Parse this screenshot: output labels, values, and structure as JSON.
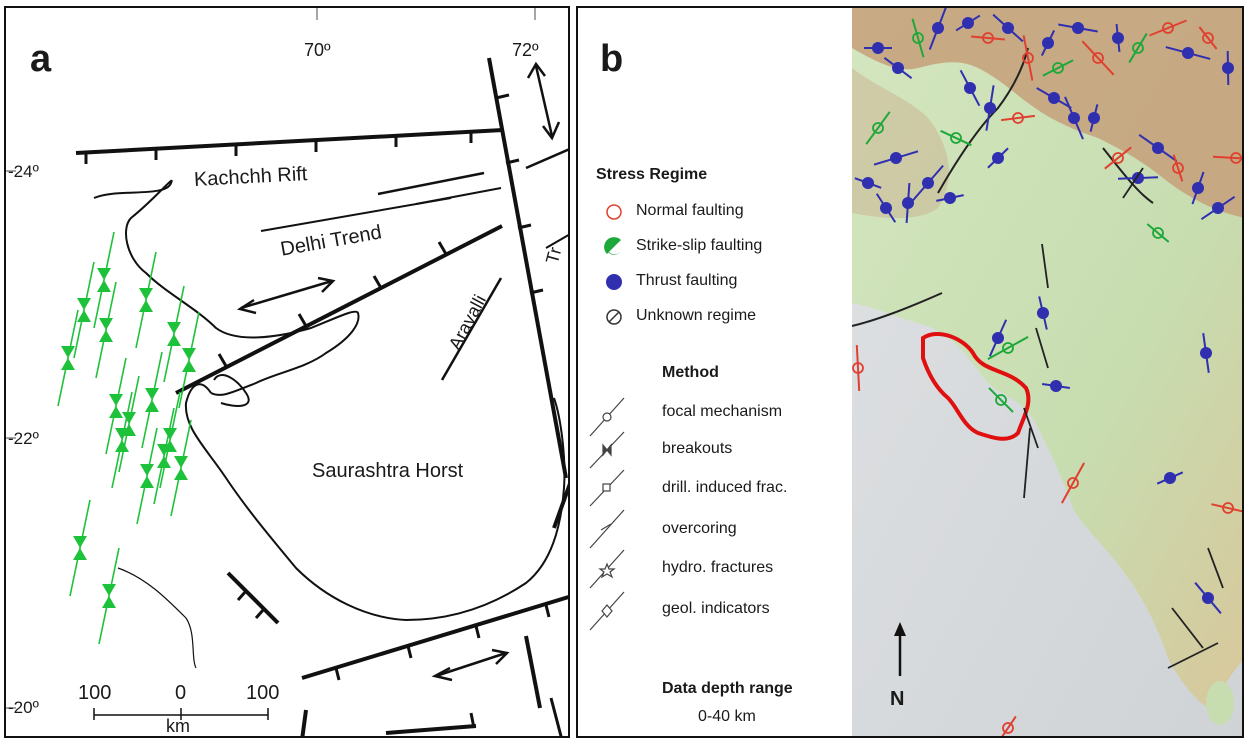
{
  "panel_a": {
    "letter": "a",
    "lon_labels": [
      "70º",
      "72º"
    ],
    "lat_labels": [
      "-24º",
      "-22º",
      "-20º"
    ],
    "regions": {
      "kachchh": "Kachchh Rift",
      "delhi": "Delhi Trend",
      "aravalli": "Aravalli",
      "saurashtra": "Saurashtra Horst",
      "partial": "Tr"
    },
    "scale": {
      "left": "100",
      "mid": "0",
      "right": "100",
      "unit": "km"
    },
    "colors": {
      "stress": "#1ec23a",
      "ink": "#111111"
    }
  },
  "panel_b": {
    "letter": "b",
    "legend": {
      "regime_title": "Stress Regime",
      "regimes": [
        {
          "label": "Normal faulting",
          "icon": "open-circle-icon",
          "color": "#e0402f"
        },
        {
          "label": "Strike-slip faulting",
          "icon": "half-filled-circle-icon",
          "color": "#1ea83a"
        },
        {
          "label": "Thrust faulting",
          "icon": "filled-circle-icon",
          "color": "#2f2fb0"
        },
        {
          "label": "Unknown regime",
          "icon": "slashed-circle-icon",
          "color": "#333333"
        }
      ],
      "method_title": "Method",
      "methods": [
        {
          "label": "focal mechanism",
          "icon": "circle-on-line-icon"
        },
        {
          "label": "breakouts",
          "icon": "bowtie-on-line-icon"
        },
        {
          "label": "drill. induced frac.",
          "icon": "square-on-line-icon"
        },
        {
          "label": "overcoring",
          "icon": "cross-on-line-icon"
        },
        {
          "label": "hydro. fractures",
          "icon": "star-on-line-icon"
        },
        {
          "label": "geol. indicators",
          "icon": "diamond-on-line-icon"
        }
      ],
      "depth_title": "Data depth range",
      "depth_value": "0-40 km"
    },
    "north_label": "N",
    "colors": {
      "land": "#cfe3b8",
      "mountain": "#c9a77d",
      "sea": "#d9dcdf",
      "outline": "#e01010"
    }
  }
}
